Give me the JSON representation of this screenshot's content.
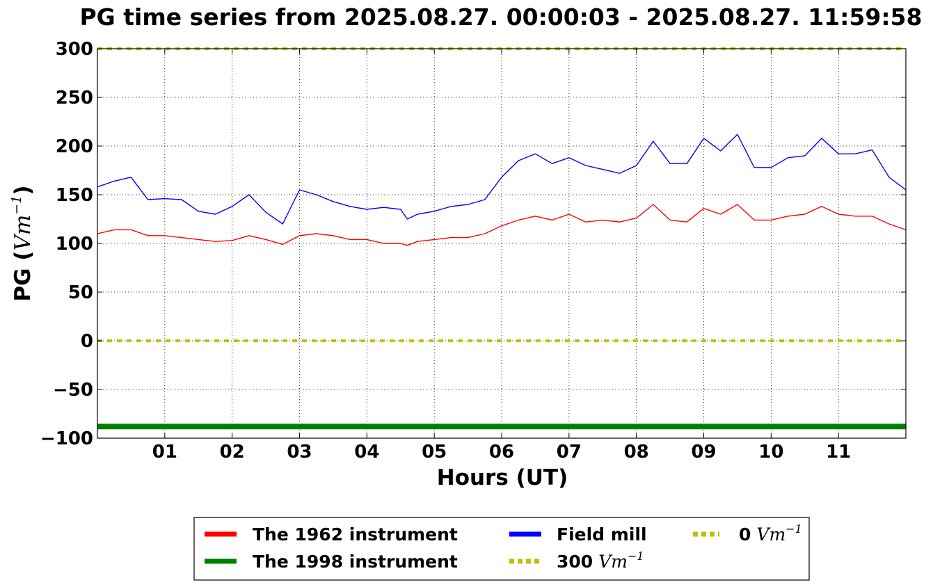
{
  "chart_data": {
    "type": "line",
    "title": "PG time series from 2025.08.27. 00:00:03 - 2025.08.27. 11:59:58",
    "xlabel": "Hours (UT)",
    "ylabel_prefix": "PG (",
    "ylabel_unit": "Vm",
    "ylabel_exp": "−1",
    "ylabel_suffix": ")",
    "xlim": [
      0,
      12
    ],
    "ylim": [
      -100,
      300
    ],
    "grid": true,
    "legend_position": "bottom-center",
    "x_ticks": [
      {
        "value": 1,
        "label": "01"
      },
      {
        "value": 2,
        "label": "02"
      },
      {
        "value": 3,
        "label": "03"
      },
      {
        "value": 4,
        "label": "04"
      },
      {
        "value": 5,
        "label": "05"
      },
      {
        "value": 6,
        "label": "06"
      },
      {
        "value": 7,
        "label": "07"
      },
      {
        "value": 8,
        "label": "08"
      },
      {
        "value": 9,
        "label": "09"
      },
      {
        "value": 10,
        "label": "10"
      },
      {
        "value": 11,
        "label": "11"
      }
    ],
    "y_ticks": [
      {
        "value": 300,
        "label": "300"
      },
      {
        "value": 250,
        "label": "250"
      },
      {
        "value": 200,
        "label": "200"
      },
      {
        "value": 150,
        "label": "150"
      },
      {
        "value": 100,
        "label": "100"
      },
      {
        "value": 50,
        "label": "50"
      },
      {
        "value": 0,
        "label": "0"
      },
      {
        "value": -50,
        "label": "−50"
      },
      {
        "value": -100,
        "label": "−100"
      }
    ],
    "series": [
      {
        "name": "The 1962 instrument",
        "color": "#ff0000",
        "style": "solid",
        "x": [
          0.0,
          0.25,
          0.5,
          0.75,
          1.0,
          1.25,
          1.5,
          1.75,
          2.0,
          2.25,
          2.5,
          2.75,
          3.0,
          3.25,
          3.5,
          3.75,
          4.0,
          4.25,
          4.5,
          4.6,
          4.75,
          5.0,
          5.25,
          5.5,
          5.75,
          6.0,
          6.25,
          6.5,
          6.75,
          7.0,
          7.25,
          7.5,
          7.75,
          8.0,
          8.25,
          8.5,
          8.75,
          9.0,
          9.25,
          9.5,
          9.75,
          10.0,
          10.25,
          10.5,
          10.75,
          11.0,
          11.25,
          11.5,
          11.75,
          12.0
        ],
        "y": [
          110,
          114,
          114,
          108,
          108,
          106,
          104,
          102,
          103,
          108,
          104,
          99,
          108,
          110,
          108,
          104,
          104,
          100,
          100,
          98,
          102,
          104,
          106,
          106,
          110,
          118,
          124,
          128,
          124,
          130,
          122,
          124,
          122,
          126,
          140,
          124,
          122,
          136,
          130,
          140,
          124,
          124,
          128,
          130,
          138,
          130,
          128,
          128,
          120,
          114
        ]
      },
      {
        "name": "The 1998 instrument",
        "color": "#008000",
        "style": "solid",
        "x": [
          0,
          12
        ],
        "y": [
          -88,
          -88
        ]
      },
      {
        "name": "Field mill",
        "color": "#0000ff",
        "style": "solid",
        "x": [
          0.0,
          0.25,
          0.5,
          0.75,
          1.0,
          1.25,
          1.5,
          1.75,
          2.0,
          2.25,
          2.5,
          2.75,
          3.0,
          3.25,
          3.5,
          3.75,
          4.0,
          4.25,
          4.5,
          4.6,
          4.75,
          5.0,
          5.25,
          5.5,
          5.75,
          6.0,
          6.25,
          6.5,
          6.75,
          7.0,
          7.25,
          7.5,
          7.75,
          8.0,
          8.25,
          8.5,
          8.75,
          9.0,
          9.25,
          9.5,
          9.75,
          10.0,
          10.25,
          10.5,
          10.75,
          11.0,
          11.25,
          11.5,
          11.75,
          12.0
        ],
        "y": [
          158,
          164,
          168,
          145,
          146,
          145,
          133,
          130,
          138,
          150,
          132,
          120,
          155,
          150,
          143,
          138,
          135,
          137,
          135,
          125,
          130,
          133,
          138,
          140,
          145,
          168,
          185,
          192,
          182,
          188,
          180,
          176,
          172,
          180,
          205,
          182,
          182,
          208,
          195,
          212,
          178,
          178,
          188,
          190,
          208,
          192,
          192,
          196,
          168,
          155
        ]
      },
      {
        "name": "300 Vm⁻¹",
        "legend_text": "300",
        "color": "#bfbf00",
        "style": "dotted",
        "x": [
          0,
          12
        ],
        "y": [
          300,
          300
        ]
      },
      {
        "name": "0 Vm⁻¹",
        "legend_text": "0",
        "color": "#bfbf00",
        "style": "dotted",
        "x": [
          0,
          12
        ],
        "y": [
          0,
          0
        ]
      }
    ],
    "legend_unit": "Vm",
    "legend_exp": "−1"
  }
}
